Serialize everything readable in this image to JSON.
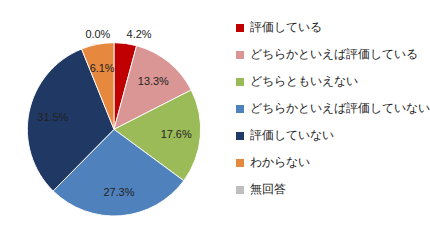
{
  "chart_data": {
    "type": "pie",
    "categories": [
      "評価している",
      "どちらかといえば評価している",
      "どちらともいえない",
      "どちらかといえば評価していない",
      "評価していない",
      "わからない",
      "無回答"
    ],
    "values": [
      4.2,
      13.3,
      17.6,
      27.3,
      31.5,
      6.1,
      0.0
    ],
    "value_labels": [
      "4.2%",
      "13.3%",
      "17.6%",
      "27.3%",
      "31.5%",
      "6.1%",
      "0.0%"
    ],
    "colors": [
      "#c00000",
      "#da9694",
      "#9bbb59",
      "#4f81bd",
      "#1f3864",
      "#e6883e",
      "#bfbfbf"
    ],
    "data_labels": true,
    "legend": "right"
  }
}
